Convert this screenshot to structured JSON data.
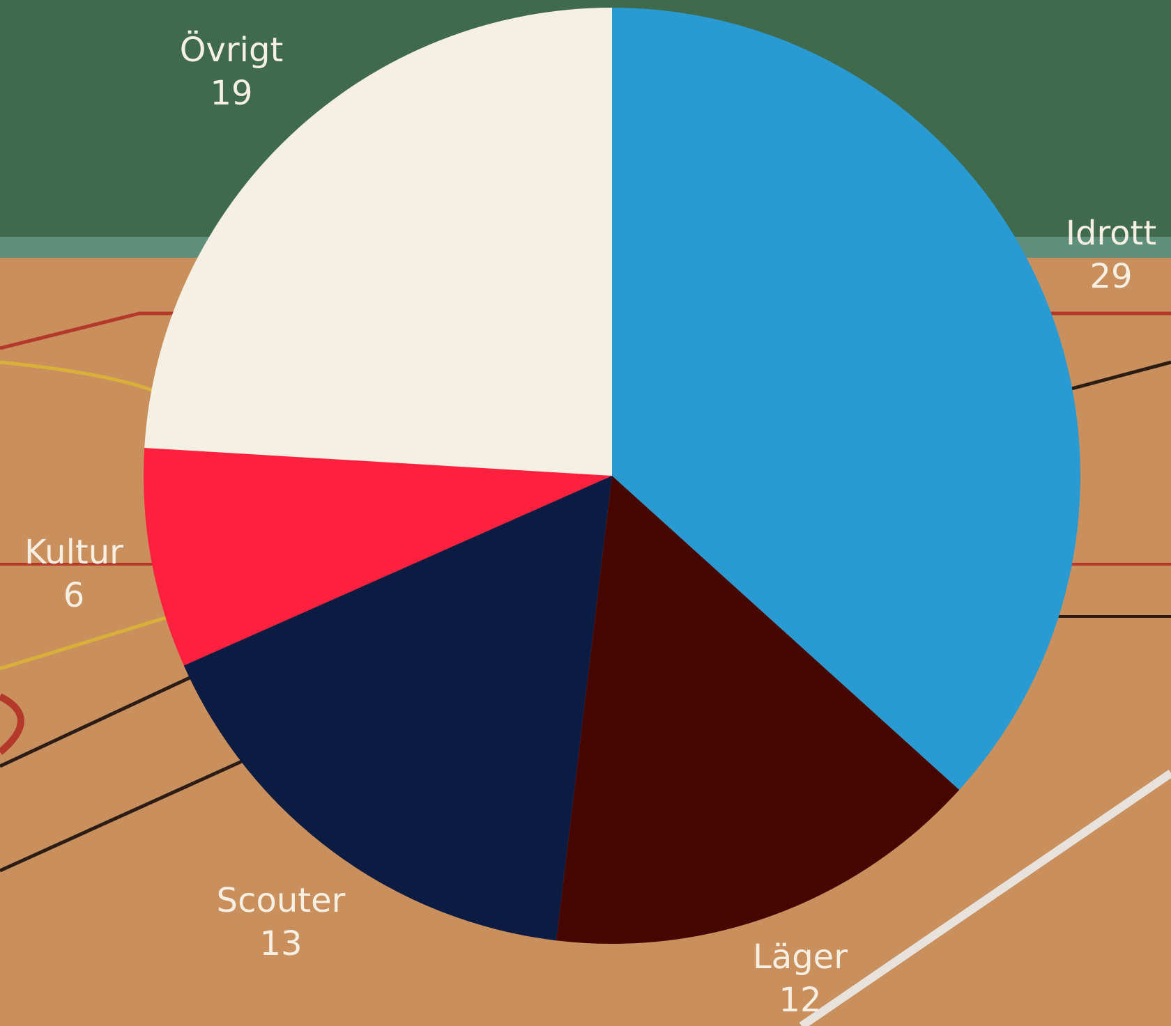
{
  "chart_data": {
    "type": "pie",
    "categories": [
      "Idrott",
      "Läger",
      "Scouter",
      "Kultur",
      "Övrigt"
    ],
    "values": [
      29,
      12,
      13,
      6,
      19
    ],
    "colors": [
      "#2a9bd2",
      "#460702",
      "#0c1b41",
      "#fe213f",
      "#f6efe3"
    ]
  }
}
